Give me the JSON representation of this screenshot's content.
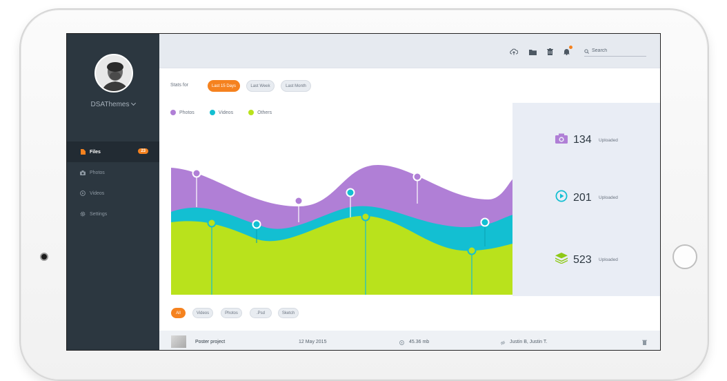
{
  "user": {
    "name": "DSAThemes"
  },
  "sidebar": {
    "items": [
      {
        "label": "Files",
        "badge": "23",
        "active": true,
        "icon": "file-icon"
      },
      {
        "label": "Photos",
        "icon": "camera-icon"
      },
      {
        "label": "Videos",
        "icon": "play-icon"
      },
      {
        "label": "Settings",
        "icon": "gear-icon"
      }
    ]
  },
  "topbar": {
    "icons": [
      "upload-icon",
      "folder-icon",
      "trash-icon",
      "bell-icon"
    ],
    "search_placeholder": "Search"
  },
  "stats_filter": {
    "label": "Stats for",
    "options": [
      "Last 15 Days",
      "Last Week",
      "Last Month"
    ],
    "selected": "Last 15 Days"
  },
  "legend": [
    {
      "name": "Photos",
      "color": "#b07fd6"
    },
    {
      "name": "Videos",
      "color": "#13bfd2"
    },
    {
      "name": "Others",
      "color": "#b9e21c"
    }
  ],
  "stats": [
    {
      "value": "134",
      "label": "Uploaded",
      "color": "#b07fd6",
      "icon": "camera-icon"
    },
    {
      "value": "201",
      "label": "Uploaded",
      "color": "#13bfd2",
      "icon": "play-circle-icon"
    },
    {
      "value": "523",
      "label": "Uploaded",
      "color": "#8fc917",
      "icon": "layers-icon"
    }
  ],
  "file_filters": {
    "options": [
      "All",
      "Videos",
      "Photos",
      ".Psd",
      "Sketch"
    ],
    "selected": "All"
  },
  "file_row": {
    "name": "Poster project",
    "date": "12 May 2015",
    "size": "45.36 mb",
    "shared_with": "Justin B, Justin T."
  }
}
